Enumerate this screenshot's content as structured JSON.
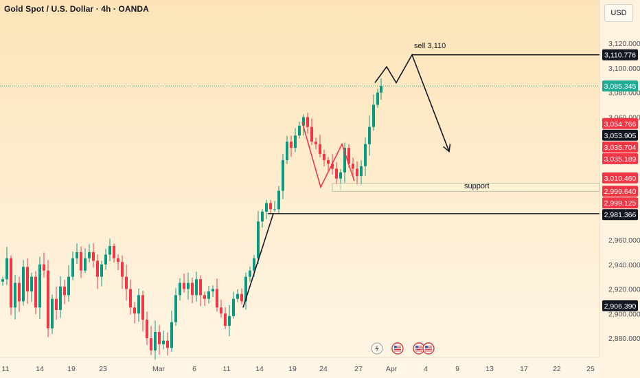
{
  "header": {
    "title": "Gold Spot / U.S. Dollar · 4h · OANDA",
    "currency_button": "USD"
  },
  "chart_data": {
    "type": "candlestick",
    "title": "Gold Spot / U.S. Dollar · 4h · OANDA",
    "ylim": [
      2866,
      3133
    ],
    "y_ticks": [
      2880,
      2900,
      2920,
      2940,
      2960,
      2980,
      3000,
      3020,
      3040,
      3060,
      3080,
      3100,
      3120
    ],
    "y_tick_labels": [
      "2,880.000",
      "2,900.000",
      "2,920.000",
      "2,940.000",
      "2,960.000",
      "",
      "",
      "",
      "",
      "3,060.000",
      "3,080.000",
      "3,100.000",
      "3,120.000"
    ],
    "x_tick_labels": [
      "11",
      "14",
      "19",
      "23",
      "Mar",
      "6",
      "11",
      "14",
      "19",
      "24",
      "27",
      "Apr",
      "4",
      "9",
      "13",
      "17",
      "22",
      "25"
    ],
    "colors": {
      "up": "#089981",
      "down": "#f23645",
      "line": "#131722",
      "pattern": "#f23645",
      "current_price": "#22ab94"
    },
    "price_labels": [
      {
        "text": "3,110.776",
        "value": 3110.776,
        "style": "black"
      },
      {
        "text": "3,085.345",
        "value": 3085.345,
        "style": "green"
      },
      {
        "text": "3,054.766",
        "value": 3054.766,
        "style": "red"
      },
      {
        "text": "3,053.905",
        "value": 3053.905,
        "style": "black"
      },
      {
        "text": "3,035.704",
        "value": 3035.704,
        "style": "red"
      },
      {
        "text": "3,035.189",
        "value": 3035.189,
        "style": "red"
      },
      {
        "text": "3,010.460",
        "value": 3010.46,
        "style": "red"
      },
      {
        "text": "2,999.640",
        "value": 2999.64,
        "style": "red"
      },
      {
        "text": "2,999.125",
        "value": 2999.125,
        "style": "red"
      },
      {
        "text": "2,981.366",
        "value": 2981.366,
        "style": "black"
      },
      {
        "text": "2,906.390",
        "value": 2906.39,
        "style": "black"
      }
    ],
    "annotations": {
      "sell": "sell 3,110",
      "support": "support"
    },
    "candles_close_path": [
      [
        0,
        2928
      ],
      [
        6,
        2945
      ],
      [
        12,
        2905
      ],
      [
        18,
        2925
      ],
      [
        24,
        2910
      ],
      [
        30,
        2938
      ],
      [
        36,
        2918
      ],
      [
        42,
        2930
      ],
      [
        48,
        2905
      ],
      [
        54,
        2940
      ],
      [
        60,
        2935
      ],
      [
        66,
        2888
      ],
      [
        72,
        2912
      ],
      [
        78,
        2903
      ],
      [
        84,
        2922
      ],
      [
        90,
        2915
      ],
      [
        96,
        2930
      ],
      [
        102,
        2945
      ],
      [
        108,
        2950
      ],
      [
        114,
        2935
      ],
      [
        120,
        2945
      ],
      [
        126,
        2950
      ],
      [
        132,
        2943
      ],
      [
        138,
        2930
      ],
      [
        144,
        2940
      ],
      [
        150,
        2948
      ],
      [
        156,
        2955
      ],
      [
        162,
        2945
      ],
      [
        168,
        2942
      ],
      [
        174,
        2930
      ],
      [
        180,
        2920
      ],
      [
        186,
        2905
      ],
      [
        192,
        2900
      ],
      [
        198,
        2915
      ],
      [
        204,
        2895
      ],
      [
        210,
        2880
      ],
      [
        216,
        2870
      ],
      [
        222,
        2885
      ],
      [
        228,
        2875
      ],
      [
        234,
        2878
      ],
      [
        240,
        2872
      ],
      [
        246,
        2893
      ],
      [
        252,
        2915
      ],
      [
        258,
        2925
      ],
      [
        264,
        2920
      ],
      [
        270,
        2925
      ],
      [
        276,
        2915
      ],
      [
        282,
        2928
      ],
      [
        288,
        2915
      ],
      [
        294,
        2912
      ],
      [
        300,
        2918
      ],
      [
        306,
        2920
      ],
      [
        312,
        2905
      ],
      [
        318,
        2900
      ],
      [
        324,
        2890
      ],
      [
        330,
        2898
      ],
      [
        336,
        2912
      ],
      [
        342,
        2916
      ],
      [
        348,
        2910
      ],
      [
        354,
        2930
      ],
      [
        360,
        2935
      ],
      [
        366,
        2945
      ],
      [
        372,
        2975
      ],
      [
        378,
        2983
      ],
      [
        384,
        2990
      ],
      [
        390,
        2985
      ],
      [
        396,
        2985
      ],
      [
        402,
        3000
      ],
      [
        408,
        3025
      ],
      [
        414,
        3040
      ],
      [
        420,
        3035
      ],
      [
        426,
        3045
      ],
      [
        432,
        3053
      ],
      [
        438,
        3060
      ],
      [
        444,
        3052
      ],
      [
        450,
        3040
      ],
      [
        456,
        3038
      ],
      [
        462,
        3030
      ],
      [
        468,
        3025
      ],
      [
        474,
        3022
      ],
      [
        480,
        3018
      ],
      [
        486,
        3010
      ],
      [
        492,
        3015
      ],
      [
        498,
        3035
      ],
      [
        504,
        3022
      ],
      [
        510,
        3018
      ],
      [
        516,
        3012
      ],
      [
        522,
        3020
      ],
      [
        528,
        3038
      ],
      [
        534,
        3052
      ],
      [
        540,
        3070
      ],
      [
        546,
        3080
      ],
      [
        551,
        3085.345
      ]
    ],
    "levels": [
      {
        "name": "resistance",
        "value": 3110.776,
        "x_start": 600
      },
      {
        "name": "key-level",
        "value": 2981.366,
        "x_start": 390
      },
      {
        "name": "support-top",
        "value": 3006,
        "x_start": 484
      },
      {
        "name": "support-bottom",
        "value": 2999.64,
        "x_start": 484
      }
    ],
    "trendline": [
      [
        354,
        2905
      ],
      [
        398,
        2981.366
      ]
    ],
    "projection_path": [
      [
        546,
        3088
      ],
      [
        563,
        3101
      ],
      [
        577,
        3088
      ],
      [
        600,
        3110.776
      ],
      [
        654,
        3032
      ]
    ],
    "pattern_path": [
      [
        440,
        3056
      ],
      [
        467,
        3003
      ],
      [
        498,
        3038
      ],
      [
        516,
        3008
      ]
    ],
    "bottom_icons": [
      "lightning-icon",
      "us-flag-icon",
      "us-flag-icon",
      "us-flag-icon"
    ]
  }
}
